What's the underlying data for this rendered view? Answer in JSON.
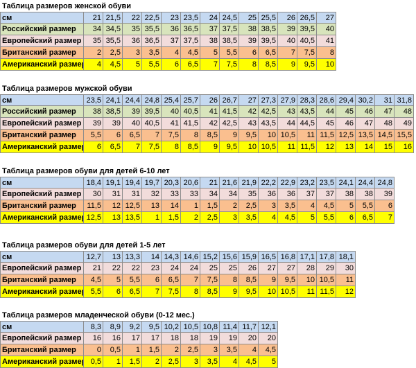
{
  "tables": [
    {
      "title": "Таблица размеров женской обуви",
      "rows": [
        {
          "label": "см",
          "color": "#c5d9f1",
          "values": [
            "21",
            "21,5",
            "22",
            "22,5",
            "23",
            "23,5",
            "24",
            "24,5",
            "25",
            "25,5",
            "26",
            "26,5",
            "27"
          ]
        },
        {
          "label": "Российский размер",
          "color": "#d8e4bc",
          "values": [
            "34",
            "34,5",
            "35",
            "35,5",
            "36",
            "36,5",
            "37",
            "37,5",
            "38",
            "38,5",
            "39",
            "39,5",
            "40"
          ]
        },
        {
          "label": "Европейский размер",
          "color": "#f2dcdb",
          "values": [
            "35",
            "35,5",
            "36",
            "36,5",
            "37",
            "37,5",
            "38",
            "38,5",
            "39",
            "39,5",
            "40",
            "40,5",
            "41"
          ]
        },
        {
          "label": "Британский размер",
          "color": "#fabf8f",
          "values": [
            "2",
            "2,5",
            "3",
            "3,5",
            "4",
            "4,5",
            "5",
            "5,5",
            "6",
            "6,5",
            "7",
            "7,5",
            "8"
          ]
        },
        {
          "label": "Американский размер",
          "color": "#ffff00",
          "values": [
            "4",
            "4,5",
            "5",
            "5,5",
            "6",
            "6,5",
            "7",
            "7,5",
            "8",
            "8,5",
            "9",
            "9,5",
            "10"
          ]
        }
      ]
    },
    {
      "title": "Таблица размеров мужской обуви",
      "rows": [
        {
          "label": "см",
          "color": "#c5d9f1",
          "values": [
            "23,5",
            "24,1",
            "24,4",
            "24,8",
            "25,4",
            "25,7",
            "26",
            "26,7",
            "27",
            "27,3",
            "27,9",
            "28,3",
            "28,6",
            "29,4",
            "30,2",
            "31",
            "31,8"
          ]
        },
        {
          "label": "Российский размер",
          "color": "#d8e4bc",
          "values": [
            "38",
            "38,5",
            "39",
            "39,5",
            "40",
            "40,5",
            "41",
            "41,5",
            "42",
            "42,5",
            "43",
            "43,5",
            "44",
            "45",
            "46",
            "47",
            "48"
          ]
        },
        {
          "label": "Европейский размер",
          "color": "#f2dcdb",
          "values": [
            "39",
            "39",
            "40",
            "40,5",
            "41",
            "41,5",
            "42",
            "42,5",
            "43",
            "43,5",
            "44",
            "44,5",
            "45",
            "46",
            "47",
            "48",
            "49"
          ]
        },
        {
          "label": "Британский размер",
          "color": "#fabf8f",
          "values": [
            "5,5",
            "6",
            "6,5",
            "7",
            "7,5",
            "8",
            "8,5",
            "9",
            "9,5",
            "10",
            "10,5",
            "11",
            "11,5",
            "12,5",
            "13,5",
            "14,5",
            "15,5"
          ]
        },
        {
          "label": "Американский размер",
          "color": "#ffff00",
          "values": [
            "6",
            "6,5",
            "7",
            "7,5",
            "8",
            "8,5",
            "9",
            "9,5",
            "10",
            "10,5",
            "11",
            "11,5",
            "12",
            "13",
            "14",
            "15",
            "16"
          ]
        }
      ]
    },
    {
      "title": "Таблица размеров обуви для детей 6-10 лет",
      "rows": [
        {
          "label": "см",
          "color": "#c5d9f1",
          "values": [
            "18,4",
            "19,1",
            "19,4",
            "19,7",
            "20,3",
            "20,6",
            "21",
            "21,6",
            "21,9",
            "22,2",
            "22,9",
            "23,2",
            "23,5",
            "24,1",
            "24,4",
            "24,8"
          ]
        },
        {
          "label": "Европейский размер",
          "color": "#f2dcdb",
          "values": [
            "30",
            "31",
            "31",
            "32",
            "33",
            "33",
            "34",
            "34",
            "35",
            "36",
            "36",
            "37",
            "37",
            "38",
            "38",
            "39"
          ]
        },
        {
          "label": "Британский размер",
          "color": "#fabf8f",
          "values": [
            "11,5",
            "12",
            "12,5",
            "13",
            "14",
            "1",
            "1,5",
            "2",
            "2,5",
            "3",
            "3,5",
            "4",
            "4,5",
            "5",
            "5,5",
            "6"
          ]
        },
        {
          "label": "Американский размер",
          "color": "#ffff00",
          "values": [
            "12,5",
            "13",
            "13,5",
            "1",
            "1,5",
            "2",
            "2,5",
            "3",
            "3,5",
            "4",
            "4,5",
            "5",
            "5,5",
            "6",
            "6,5",
            "7"
          ]
        }
      ]
    },
    {
      "title": "Таблица размеров обуви для детей 1-5 лет",
      "rows": [
        {
          "label": "см",
          "color": "#c5d9f1",
          "values": [
            "12,7",
            "13",
            "13,3",
            "14",
            "14,3",
            "14,6",
            "15,2",
            "15,6",
            "15,9",
            "16,5",
            "16,8",
            "17,1",
            "17,8",
            "18,1"
          ]
        },
        {
          "label": "Европейский размер",
          "color": "#f2dcdb",
          "values": [
            "21",
            "22",
            "22",
            "23",
            "24",
            "24",
            "25",
            "25",
            "26",
            "27",
            "27",
            "28",
            "29",
            "30"
          ]
        },
        {
          "label": "Британский размер",
          "color": "#fabf8f",
          "values": [
            "4,5",
            "5",
            "5,5",
            "6",
            "6,5",
            "7",
            "7,5",
            "8",
            "8,5",
            "9",
            "9,5",
            "10",
            "10,5",
            "11"
          ]
        },
        {
          "label": "Американский размер",
          "color": "#ffff00",
          "values": [
            "5,5",
            "6",
            "6,5",
            "7",
            "7,5",
            "8",
            "8,5",
            "9",
            "9,5",
            "10",
            "10,5",
            "11",
            "11,5",
            "12"
          ]
        }
      ]
    },
    {
      "title": "Таблица размеров младенческой обуви (0-12 мес.)",
      "rows": [
        {
          "label": "см",
          "color": "#c5d9f1",
          "values": [
            "8,3",
            "8,9",
            "9,2",
            "9,5",
            "10,2",
            "10,5",
            "10,8",
            "11,4",
            "11,7",
            "12,1"
          ]
        },
        {
          "label": "Европейский размер",
          "color": "#f2dcdb",
          "values": [
            "16",
            "16",
            "17",
            "17",
            "18",
            "18",
            "19",
            "19",
            "20",
            "20"
          ]
        },
        {
          "label": "Британский размер",
          "color": "#fabf8f",
          "values": [
            "0",
            "0,5",
            "1",
            "1,5",
            "2",
            "2,5",
            "3",
            "3,5",
            "4",
            "4,5"
          ]
        },
        {
          "label": "Американский размер",
          "color": "#ffff00",
          "values": [
            "0,5",
            "1",
            "1,5",
            "2",
            "2,5",
            "3",
            "3,5",
            "4",
            "4,5",
            "5"
          ]
        }
      ]
    }
  ]
}
